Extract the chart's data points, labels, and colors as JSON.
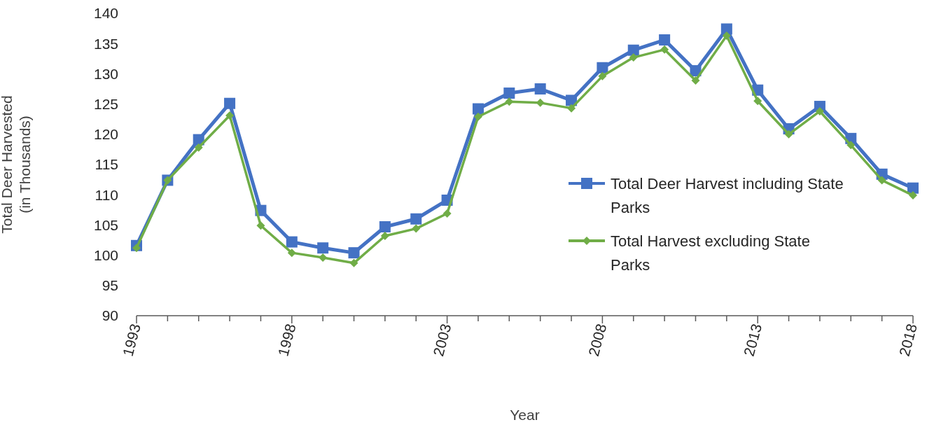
{
  "chart_data": {
    "type": "line",
    "xlabel": "Year",
    "ylabel": "Total Deer Harvested (in Thousands)",
    "x": [
      1993,
      1994,
      1995,
      1996,
      1997,
      1998,
      1999,
      2000,
      2001,
      2002,
      2003,
      2004,
      2005,
      2006,
      2007,
      2008,
      2009,
      2010,
      2011,
      2012,
      2013,
      2014,
      2015,
      2016,
      2017,
      2018
    ],
    "series": [
      {
        "name": "Total Deer Harvest including State Parks",
        "color": "#4472c4",
        "marker": "square",
        "values": [
          101.6,
          112.4,
          119.1,
          125.1,
          107.4,
          102.2,
          101.2,
          100.4,
          104.7,
          106.0,
          109.1,
          124.2,
          126.8,
          127.5,
          125.6,
          131.0,
          133.9,
          135.6,
          130.5,
          137.4,
          127.3,
          120.9,
          124.6,
          119.3,
          113.4,
          111.1
        ]
      },
      {
        "name": "Total Harvest excluding State Parks",
        "color": "#70ad47",
        "marker": "diamond",
        "values": [
          101.2,
          112.4,
          117.8,
          123.1,
          104.9,
          100.4,
          99.6,
          98.7,
          103.2,
          104.4,
          106.9,
          122.9,
          125.4,
          125.2,
          124.3,
          129.6,
          132.7,
          134.0,
          128.9,
          136.3,
          125.5,
          120.0,
          123.8,
          118.2,
          112.4,
          109.9
        ]
      }
    ],
    "xlim": [
      1993,
      2018
    ],
    "xticks": [
      1993,
      {
        "value": 1994,
        "label": null
      },
      {
        "value": 1995,
        "label": null
      },
      {
        "value": 1996,
        "label": null
      },
      {
        "value": 1997,
        "label": null
      },
      1998,
      {
        "value": 1999,
        "label": null
      },
      {
        "value": 2000,
        "label": null
      },
      {
        "value": 2001,
        "label": null
      },
      {
        "value": 2002,
        "label": null
      },
      2003,
      {
        "value": 2004,
        "label": null
      },
      {
        "value": 2005,
        "label": null
      },
      {
        "value": 2006,
        "label": null
      },
      {
        "value": 2007,
        "label": null
      },
      2008,
      {
        "value": 2009,
        "label": null
      },
      {
        "value": 2010,
        "label": null
      },
      {
        "value": 2011,
        "label": null
      },
      {
        "value": 2012,
        "label": null
      },
      2013,
      {
        "value": 2014,
        "label": null
      },
      {
        "value": 2015,
        "label": null
      },
      {
        "value": 2016,
        "label": null
      },
      {
        "value": 2017,
        "label": null
      },
      2018
    ],
    "ylim": [
      90,
      140
    ],
    "yticks": [
      90,
      95,
      100,
      105,
      110,
      115,
      120,
      125,
      130,
      135,
      140
    ],
    "grid": false,
    "legend": "right",
    "line_style": "solid"
  }
}
